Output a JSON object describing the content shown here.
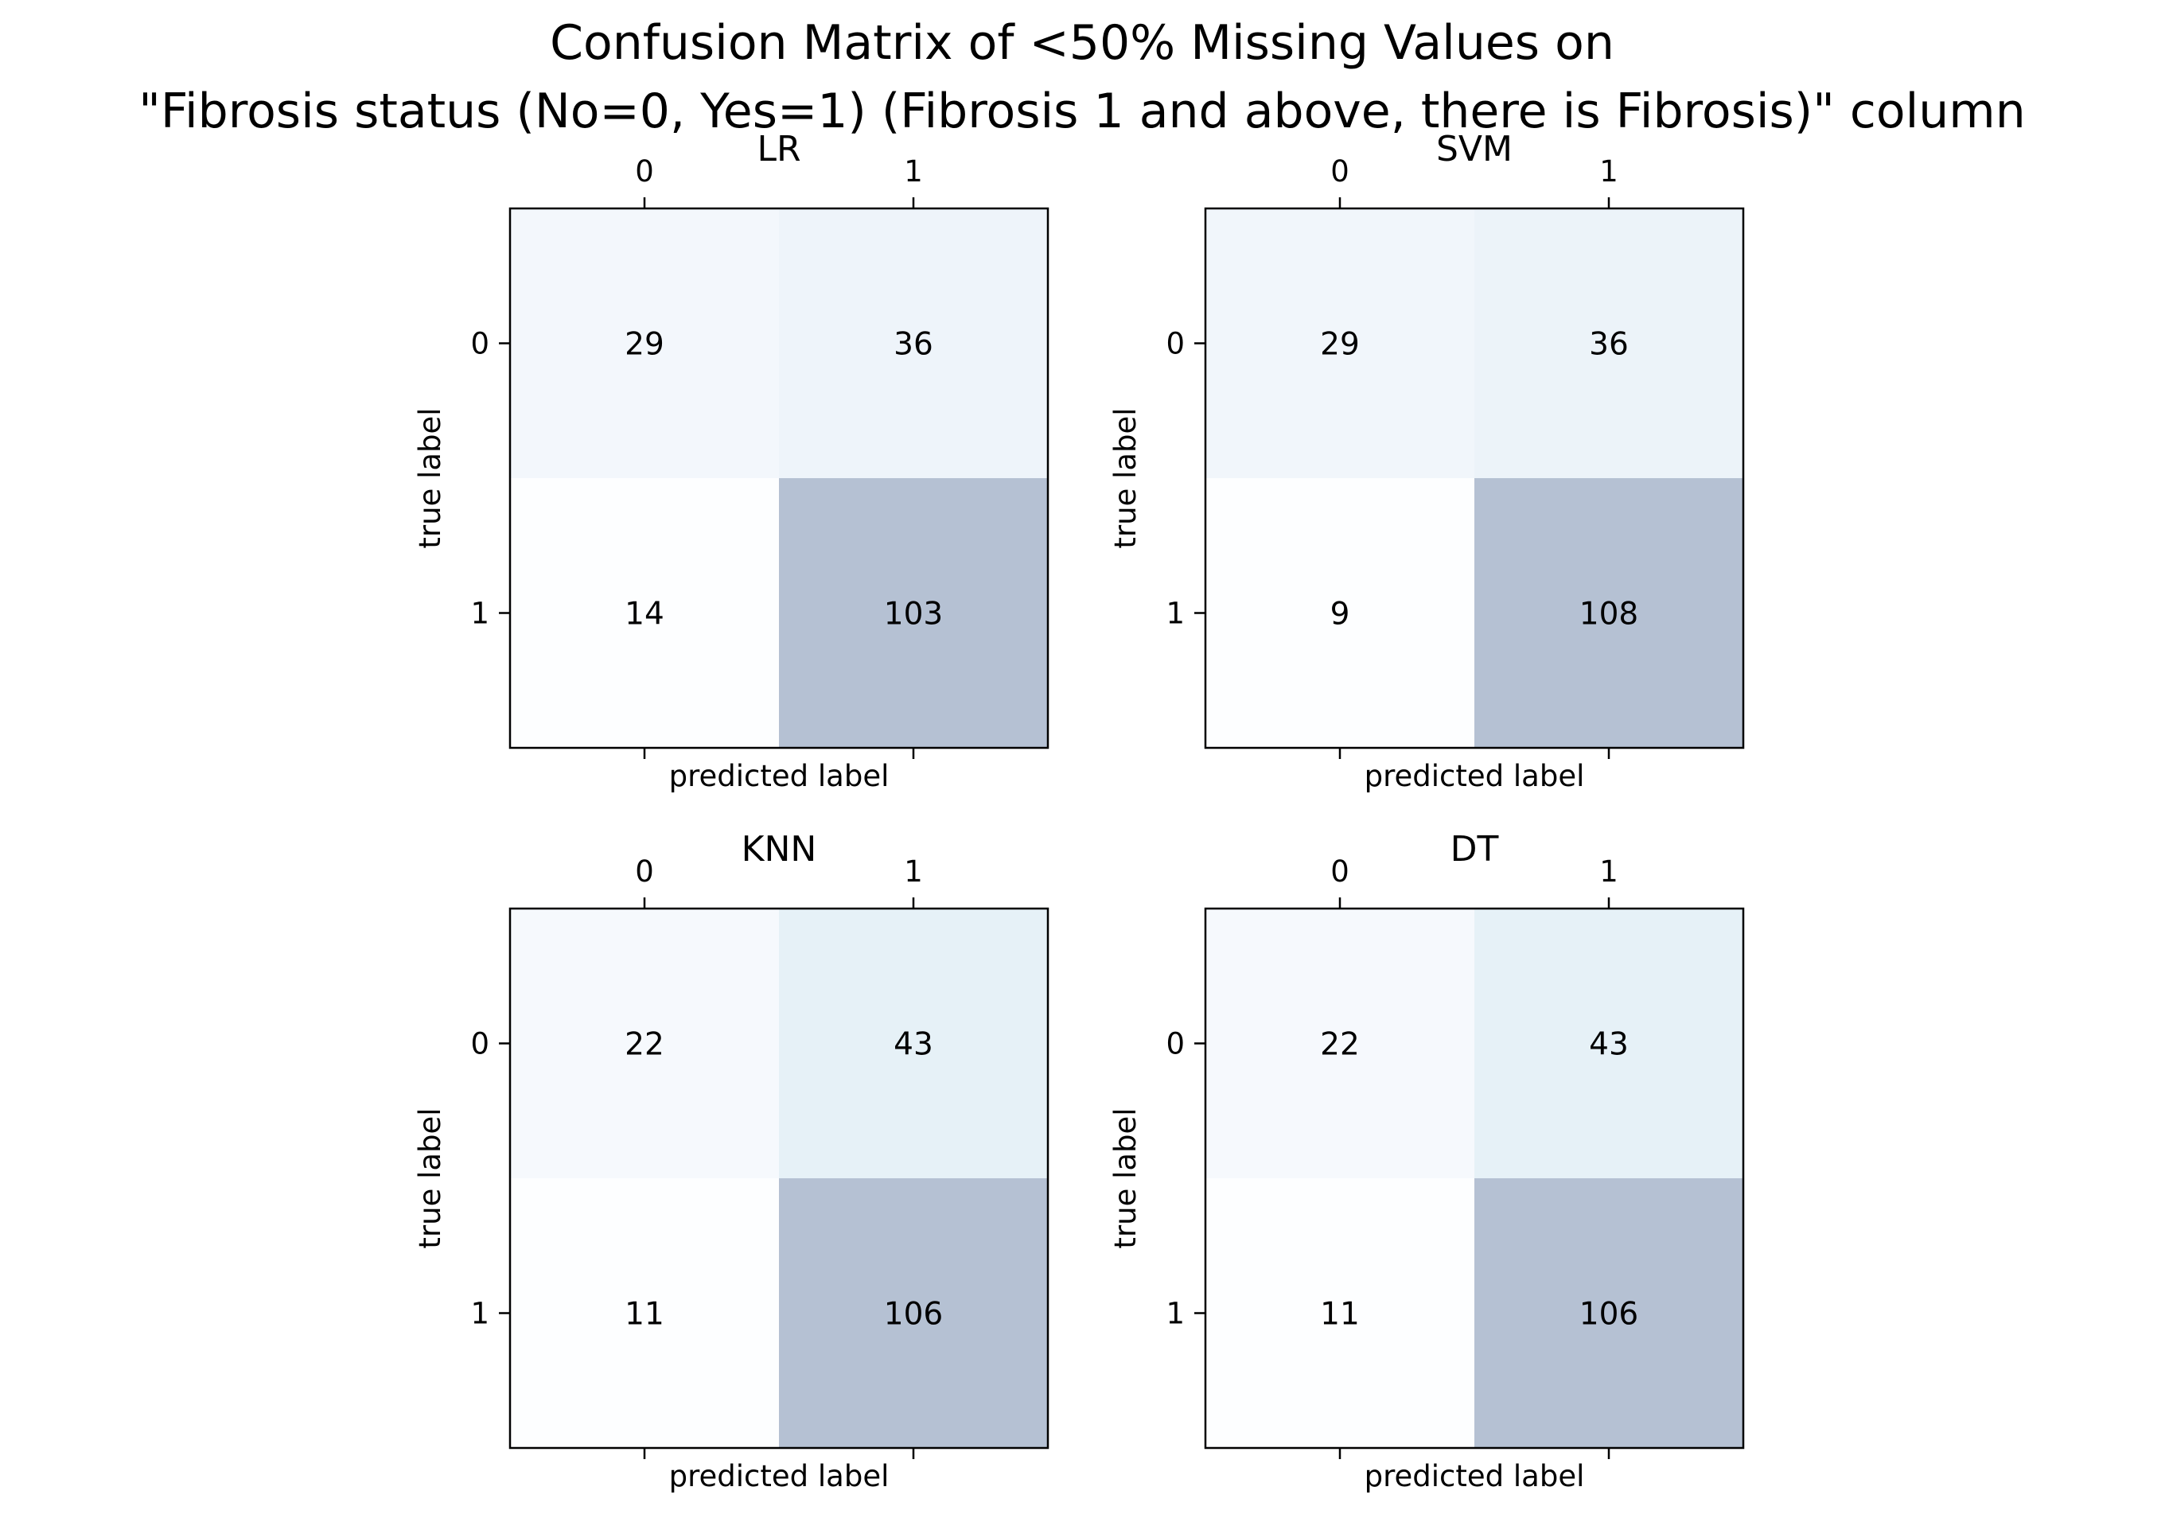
{
  "title": "Confusion Matrix of <50% Missing Values on\n\"Fibrosis status (No=0, Yes=1) (Fibrosis 1 and above, there is Fibrosis)\" column",
  "chart_data": [
    {
      "type": "heatmap",
      "title": "LR",
      "xlabel": "predicted label",
      "ylabel": "true label",
      "x_ticks": [
        "0",
        "1"
      ],
      "y_ticks": [
        "0",
        "1"
      ],
      "matrix": [
        [
          29,
          36
        ],
        [
          14,
          103
        ]
      ],
      "cmap": "Blues",
      "alpha": 0.3
    },
    {
      "type": "heatmap",
      "title": "SVM",
      "xlabel": "predicted label",
      "ylabel": "true label",
      "x_ticks": [
        "0",
        "1"
      ],
      "y_ticks": [
        "0",
        "1"
      ],
      "matrix": [
        [
          29,
          36
        ],
        [
          9,
          108
        ]
      ],
      "cmap": "Blues",
      "alpha": 0.3
    },
    {
      "type": "heatmap",
      "title": "KNN",
      "xlabel": "predicted label",
      "ylabel": "true label",
      "x_ticks": [
        "0",
        "1"
      ],
      "y_ticks": [
        "0",
        "1"
      ],
      "matrix": [
        [
          22,
          43
        ],
        [
          11,
          106
        ]
      ],
      "cmap": "Blues",
      "alpha": 0.3
    },
    {
      "type": "heatmap",
      "title": "DT",
      "xlabel": "predicted label",
      "ylabel": "true label",
      "x_ticks": [
        "0",
        "1"
      ],
      "y_ticks": [
        "0",
        "1"
      ],
      "matrix": [
        [
          22,
          43
        ],
        [
          11,
          106
        ]
      ],
      "cmap": "Blues",
      "alpha": 0.3
    }
  ]
}
